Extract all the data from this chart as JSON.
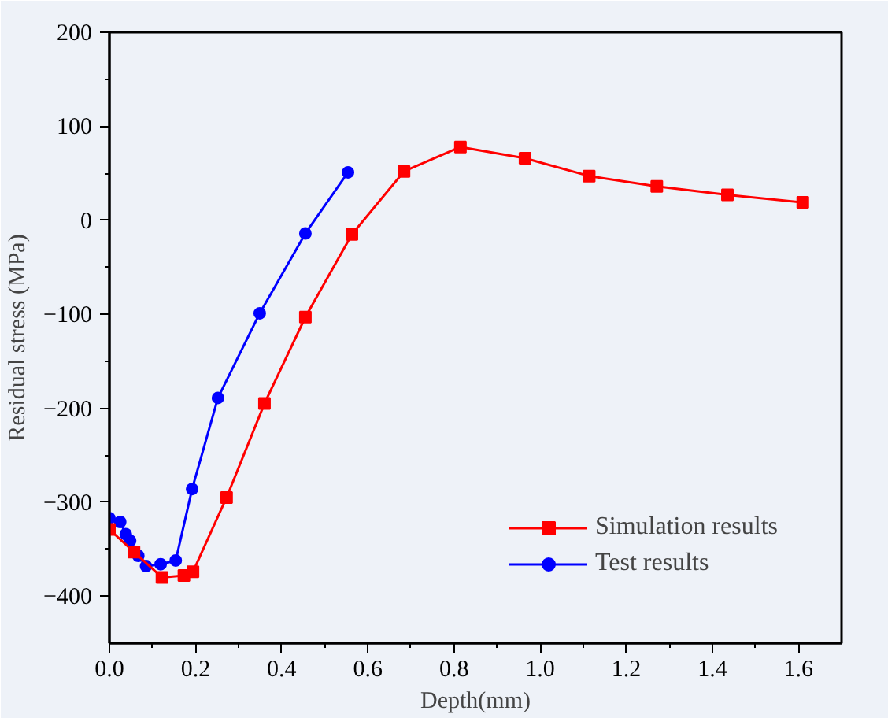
{
  "chart_data": {
    "type": "line",
    "xlabel": "Depth(mm)",
    "ylabel": "Residual stress (MPa)",
    "xlim": [
      0,
      1.7
    ],
    "ylim": [
      -450,
      200
    ],
    "xticks": [
      {
        "value": 0,
        "label": "0.0"
      },
      {
        "value": 0.2,
        "label": "0.2"
      },
      {
        "value": 0.4,
        "label": "0.4"
      },
      {
        "value": 0.6,
        "label": "0.6"
      },
      {
        "value": 0.8,
        "label": "0.8"
      },
      {
        "value": 1.0,
        "label": "1.0"
      },
      {
        "value": 1.2,
        "label": "1.2"
      },
      {
        "value": 1.4,
        "label": "1.4"
      },
      {
        "value": 1.6,
        "label": "1.6"
      }
    ],
    "yticks": [
      -400,
      -300,
      -200,
      -100,
      0,
      100,
      200
    ],
    "grid": false,
    "legend": "bottom right",
    "line_style": "solid",
    "series": [
      {
        "name": "Simulation results",
        "color": "#ff0000",
        "marker": "square",
        "x": [
          0,
          0.057,
          0.122,
          0.173,
          0.194,
          0.272,
          0.36,
          0.455,
          0.563,
          0.684,
          0.815,
          0.965,
          1.114,
          1.271,
          1.435,
          1.61
        ],
        "values": [
          -329,
          -353,
          -380,
          -378,
          -374,
          -295,
          -195,
          -103,
          -15,
          52,
          78,
          66,
          47,
          36,
          27,
          19
        ]
      },
      {
        "name": "Test results",
        "color": "#0000ff",
        "marker": "circle",
        "x": [
          0,
          0.025,
          0.038,
          0.048,
          0.067,
          0.085,
          0.119,
          0.154,
          0.192,
          0.252,
          0.349,
          0.455,
          0.554
        ],
        "values": [
          -317,
          -321,
          -334,
          -341,
          -357,
          -368,
          -366,
          -362,
          -286,
          -189,
          -99,
          -14,
          51
        ]
      }
    ]
  }
}
